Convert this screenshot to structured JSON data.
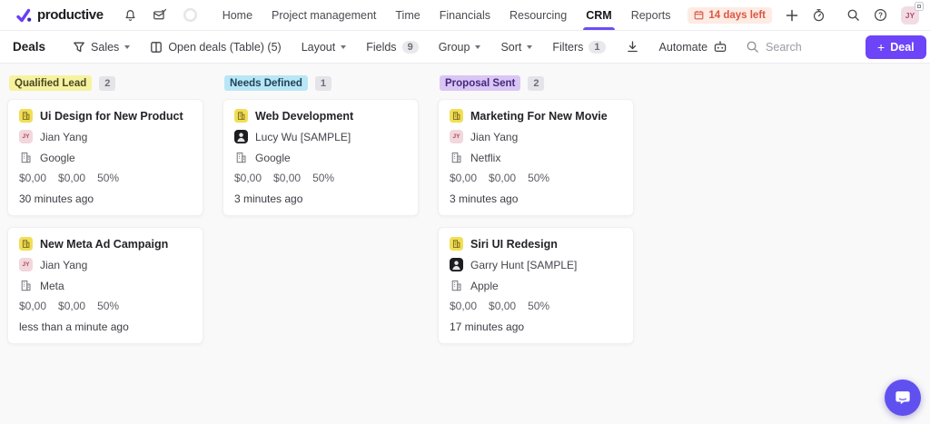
{
  "brand": {
    "name": "productive"
  },
  "topnav": {
    "items": [
      {
        "label": "Home"
      },
      {
        "label": "Project management"
      },
      {
        "label": "Time"
      },
      {
        "label": "Financials"
      },
      {
        "label": "Resourcing"
      },
      {
        "label": "CRM"
      },
      {
        "label": "Reports"
      }
    ],
    "active_item": "CRM",
    "trial_badge": "14 days left",
    "avatar_initials": "JY"
  },
  "toolbar": {
    "title": "Deals",
    "filter_name": "Sales",
    "view_label": "Open deals (Table) (5)",
    "layout_label": "Layout",
    "fields_label": "Fields",
    "fields_count": "9",
    "group_label": "Group",
    "sort_label": "Sort",
    "filters_label": "Filters",
    "filters_count": "1",
    "automate_label": "Automate",
    "search_placeholder": "Search",
    "deal_button": "Deal",
    "deal_button_plus": "+"
  },
  "colors": {
    "accent": "#6d44f8",
    "trial_badge_bg": "#fdebe4",
    "trial_badge_text": "#dd5742",
    "chat_bubble": "#6050f0"
  },
  "board": {
    "columns": [
      {
        "name": "Qualified Lead",
        "count": "2",
        "pill_bg": "#f6f3a0",
        "pill_text": "#4a4722",
        "cards": [
          {
            "title": "Ui Design for New Product",
            "person": "Jian Yang",
            "avatar": "initials",
            "initials": "JY",
            "company": "Google",
            "amount": "$0,00",
            "amount2": "$0,00",
            "probability": "50%",
            "updated": "30 minutes ago"
          },
          {
            "title": "New Meta Ad Campaign",
            "person": "Jian Yang",
            "avatar": "initials",
            "initials": "JY",
            "company": "Meta",
            "amount": "$0,00",
            "amount2": "$0,00",
            "probability": "50%",
            "updated": "less than a minute ago"
          }
        ]
      },
      {
        "name": "Needs Defined",
        "count": "1",
        "pill_bg": "#b9e6f6",
        "pill_text": "#1d4356",
        "cards": [
          {
            "title": "Web Development",
            "person": "Lucy Wu [SAMPLE]",
            "avatar": "photo",
            "company": "Google",
            "amount": "$0,00",
            "amount2": "$0,00",
            "probability": "50%",
            "updated": "3 minutes ago"
          }
        ]
      },
      {
        "name": "Proposal Sent",
        "count": "2",
        "pill_bg": "#d9c6f4",
        "pill_text": "#46277c",
        "cards": [
          {
            "title": "Marketing For New Movie",
            "person": "Jian Yang",
            "avatar": "initials",
            "initials": "JY",
            "company": "Netflix",
            "amount": "$0,00",
            "amount2": "$0,00",
            "probability": "50%",
            "updated": "3 minutes ago"
          },
          {
            "title": "Siri UI Redesign",
            "person": "Garry Hunt [SAMPLE]",
            "avatar": "photo",
            "company": "Apple",
            "amount": "$0,00",
            "amount2": "$0,00",
            "probability": "50%",
            "updated": "17 minutes ago"
          }
        ]
      }
    ]
  }
}
